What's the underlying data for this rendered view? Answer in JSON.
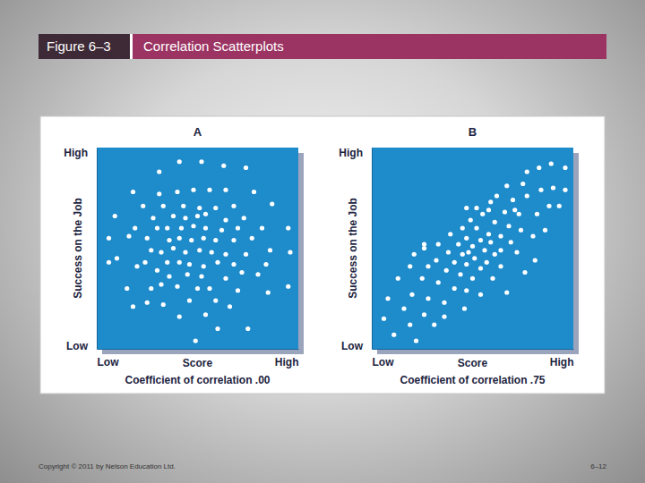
{
  "header": {
    "figure": "Figure 6–3",
    "title": "Correlation Scatterplots"
  },
  "chart_data": [
    {
      "type": "scatter",
      "title": "A",
      "x_label": "Score",
      "y_label": "Success on the Job",
      "annotation": "Coefficient of correlation .00",
      "xlim": [
        0,
        10
      ],
      "ylim": [
        0,
        10
      ],
      "xticks": [
        {
          "value": 0,
          "label": "Low"
        },
        {
          "value": 10,
          "label": "High"
        }
      ],
      "yticks": [
        {
          "value": 0,
          "label": "Low"
        },
        {
          "value": 10,
          "label": "High"
        }
      ],
      "grid": false,
      "color": "#ffffff",
      "marker": "circle",
      "x": [
        3.1,
        4.1,
        5.2,
        6.3,
        7.4,
        1.8,
        3.1,
        4.0,
        4.8,
        5.6,
        6.4,
        7.8,
        8.7,
        2.3,
        3.3,
        4.3,
        5.1,
        5.9,
        6.8,
        0.9,
        2.8,
        3.8,
        4.4,
        5.0,
        5.4,
        6.4,
        7.3,
        1.9,
        3.0,
        3.5,
        4.2,
        4.8,
        5.4,
        6.2,
        7.0,
        8.2,
        0.6,
        1.6,
        2.5,
        3.6,
        4.1,
        4.7,
        5.3,
        5.9,
        6.8,
        7.7,
        9.5,
        8.6,
        2.7,
        3.2,
        3.8,
        4.4,
        5.1,
        5.7,
        6.4,
        7.4,
        1.0,
        2.4,
        3.5,
        4.1,
        4.6,
        5.3,
        6.0,
        6.8,
        8.4,
        9.6,
        2.0,
        3.0,
        3.6,
        4.5,
        5.2,
        6.4,
        7.2,
        8.0,
        1.5,
        2.7,
        3.2,
        4.0,
        5.0,
        5.6,
        7.0,
        8.5,
        1.8,
        3.3,
        4.6,
        5.9,
        6.6,
        9.5,
        4.1,
        6.0,
        4.9,
        7.5,
        0.6,
        2.5,
        5.4
      ],
      "values": [
        8.8,
        9.3,
        9.3,
        9.1,
        9.0,
        7.8,
        7.7,
        7.8,
        7.9,
        7.9,
        7.9,
        7.8,
        7.2,
        7.1,
        7.1,
        7.1,
        7.0,
        7.0,
        7.1,
        6.6,
        6.5,
        6.6,
        6.5,
        6.6,
        6.7,
        6.4,
        6.5,
        6.0,
        6.0,
        6.0,
        6.0,
        6.1,
        6.0,
        5.9,
        6.0,
        6.0,
        5.5,
        5.6,
        5.5,
        5.4,
        5.5,
        5.4,
        5.5,
        5.4,
        5.4,
        5.5,
        6.0,
        4.9,
        4.9,
        4.8,
        5.0,
        4.8,
        4.9,
        4.8,
        4.7,
        4.7,
        4.5,
        4.3,
        4.3,
        4.3,
        4.2,
        4.1,
        4.3,
        4.2,
        4.2,
        4.8,
        4.1,
        3.9,
        3.6,
        3.7,
        3.6,
        3.5,
        3.8,
        3.7,
        3.0,
        3.0,
        3.2,
        3.1,
        3.0,
        3.0,
        2.9,
        2.8,
        2.1,
        2.2,
        2.4,
        2.4,
        2.1,
        3.1,
        1.6,
        1.0,
        0.4,
        1.0,
        4.3,
        2.3,
        1.7
      ]
    },
    {
      "type": "scatter",
      "title": "B",
      "x_label": "Score",
      "y_label": "Success on the Job",
      "annotation": "Coefficient of correlation .75",
      "xlim": [
        0,
        10
      ],
      "ylim": [
        0,
        10
      ],
      "xticks": [
        {
          "value": 0,
          "label": "Low"
        },
        {
          "value": 10,
          "label": "High"
        }
      ],
      "yticks": [
        {
          "value": 0,
          "label": "Low"
        },
        {
          "value": 10,
          "label": "High"
        }
      ],
      "grid": false,
      "color": "#ffffff",
      "marker": "circle",
      "x": [
        8.3,
        8.9,
        9.6,
        7.7,
        9.6,
        9.0,
        8.4,
        7.5,
        6.7,
        7.0,
        7.7,
        9.3,
        5.9,
        6.6,
        7.3,
        8.2,
        5.5,
        4.9,
        6.1,
        6.8,
        7.4,
        8.6,
        4.5,
        5.2,
        5.8,
        6.4,
        6.9,
        3.9,
        4.7,
        5.4,
        5.9,
        6.4,
        3.3,
        4.3,
        5.0,
        5.6,
        6.1,
        7.2,
        8.1,
        2.6,
        3.8,
        4.5,
        5.1,
        5.7,
        6.4,
        2.1,
        3.2,
        4.1,
        4.7,
        5.4,
        2.8,
        3.7,
        4.4,
        5.0,
        6.0,
        1.9,
        1.3,
        2.5,
        3.3,
        4.1,
        4.7,
        6.7,
        5.4,
        0.8,
        2.0,
        2.8,
        3.6,
        4.6,
        1.6,
        2.6,
        3.6,
        0.6,
        1.9,
        3.1,
        1.1,
        2.2,
        2.6,
        4.8,
        7.1,
        8.0,
        8.8,
        7.6,
        5.8,
        6.2,
        5.2,
        4.7
      ],
      "values": [
        9.0,
        9.2,
        9.0,
        8.8,
        7.9,
        8.0,
        7.9,
        8.2,
        8.1,
        7.4,
        7.6,
        7.1,
        7.3,
        6.8,
        6.7,
        6.7,
        6.7,
        6.4,
        6.3,
        6.1,
        5.9,
        5.9,
        6.0,
        6.0,
        5.7,
        5.6,
        5.3,
        5.7,
        5.5,
        5.4,
        5.3,
        4.9,
        5.2,
        5.2,
        5.1,
        4.9,
        4.7,
        4.8,
        4.4,
        5.2,
        4.8,
        4.7,
        4.5,
        4.3,
        4.1,
        4.7,
        4.4,
        4.3,
        4.2,
        4.0,
        4.1,
        3.9,
        3.7,
        3.5,
        3.5,
        4.1,
        3.5,
        3.5,
        3.3,
        3.0,
        2.9,
        2.8,
        2.7,
        2.5,
        2.7,
        2.5,
        2.3,
        2.0,
        2.0,
        1.7,
        1.6,
        1.5,
        1.2,
        1.2,
        0.7,
        0.4,
        5.0,
        4.8,
        6.9,
        5.6,
        7.1,
        3.8,
        6.9,
        7.6,
        7.0,
        7.0
      ]
    }
  ],
  "footer": {
    "copyright": "Copyright © 2011 by Nelson Education Ltd.",
    "page": "6–12"
  }
}
